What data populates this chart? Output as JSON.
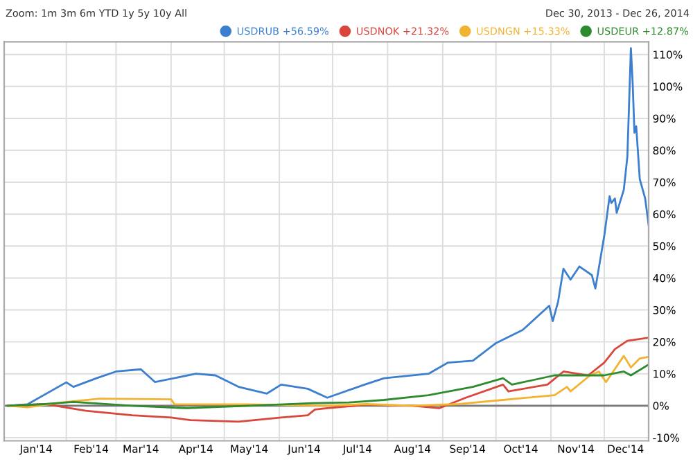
{
  "chart_data": {
    "type": "line",
    "annotations": [
      "Zoom: 1m 3m 6m YTD 1y 5y 10y All",
      "Dec 30, 2013 - Dec 26, 2014"
    ],
    "series": [
      {
        "name": "USDRUB +56.59%",
        "color": "#3d7fcf",
        "x": [
          "2013-12-30",
          "2014-01-10",
          "2014-02-01",
          "2014-02-05",
          "2014-02-18",
          "2014-03-01",
          "2014-03-15",
          "2014-03-23",
          "2014-04-15",
          "2014-04-26",
          "2014-05-09",
          "2014-05-25",
          "2014-06-02",
          "2014-06-17",
          "2014-06-28",
          "2014-07-19",
          "2014-07-30",
          "2014-08-24",
          "2014-09-04",
          "2014-09-18",
          "2014-10-01",
          "2014-10-16",
          "2014-10-31",
          "2014-11-02",
          "2014-11-05",
          "2014-11-08",
          "2014-11-12",
          "2014-11-17",
          "2014-11-24",
          "2014-11-26",
          "2014-12-01",
          "2014-12-04",
          "2014-12-05",
          "2014-12-07",
          "2014-12-08",
          "2014-12-12",
          "2014-12-14",
          "2014-12-16",
          "2014-12-17",
          "2014-12-18",
          "2014-12-19",
          "2014-12-21",
          "2014-12-24",
          "2014-12-26"
        ],
        "values": [
          0,
          0.4,
          7.3,
          5.9,
          8.6,
          10.7,
          11.4,
          7.4,
          10,
          9.5,
          5.9,
          3.8,
          6.6,
          5.3,
          2.5,
          6.6,
          8.6,
          10,
          13.5,
          14.1,
          19.6,
          23.7,
          31.3,
          26.5,
          32.6,
          42.9,
          39.5,
          43.6,
          40.9,
          36.7,
          53.2,
          65.6,
          63.5,
          64.9,
          60.4,
          67.6,
          77.9,
          112,
          101,
          85.5,
          87.5,
          71,
          65,
          56.6
        ]
      },
      {
        "name": "USDNOK +21.32%",
        "color": "#d9463a",
        "x": [
          "2013-12-30",
          "2014-01-20",
          "2014-02-12",
          "2014-03-10",
          "2014-04-01",
          "2014-04-12",
          "2014-05-09",
          "2014-06-02",
          "2014-06-17",
          "2014-06-21",
          "2014-06-28",
          "2014-07-20",
          "2014-08-15",
          "2014-08-30",
          "2014-09-14",
          "2014-10-05",
          "2014-10-08",
          "2014-10-30",
          "2014-11-08",
          "2014-11-22",
          "2014-12-01",
          "2014-12-07",
          "2014-12-14",
          "2014-12-26"
        ],
        "values": [
          0,
          0.5,
          -1.6,
          -3,
          -3.7,
          -4.5,
          -5,
          -3.7,
          -3,
          -1.2,
          -0.8,
          0.3,
          0,
          -0.8,
          2.5,
          6.6,
          4.5,
          6.6,
          10.7,
          9.5,
          13.5,
          17.7,
          20.3,
          21.3
        ]
      },
      {
        "name": "USDNGN +15.33%",
        "color": "#f2b330",
        "x": [
          "2013-12-30",
          "2014-01-10",
          "2014-02-01",
          "2014-02-20",
          "2014-04-01",
          "2014-04-03",
          "2014-05-13",
          "2014-06-28",
          "2014-07-20",
          "2014-08-15",
          "2014-09-10",
          "2014-10-05",
          "2014-11-03",
          "2014-11-10",
          "2014-11-12",
          "2014-11-23",
          "2014-11-28",
          "2014-12-02",
          "2014-12-12",
          "2014-12-16",
          "2014-12-21",
          "2014-12-26"
        ],
        "values": [
          0,
          -0.5,
          1.2,
          2.2,
          2,
          0.4,
          0.4,
          0,
          0.5,
          0,
          0.5,
          1.8,
          3.3,
          5.9,
          4.5,
          9.5,
          10.7,
          7.4,
          15.6,
          12,
          14.8,
          15.3
        ]
      },
      {
        "name": "USDEUR +12.87%",
        "color": "#2e8b2e",
        "x": [
          "2013-12-30",
          "2014-01-20",
          "2014-02-05",
          "2014-03-10",
          "2014-04-10",
          "2014-05-15",
          "2014-06-20",
          "2014-07-10",
          "2014-07-30",
          "2014-08-24",
          "2014-09-18",
          "2014-10-05",
          "2014-10-10",
          "2014-11-03",
          "2014-11-23",
          "2014-12-01",
          "2014-12-12",
          "2014-12-16",
          "2014-12-26"
        ],
        "values": [
          0,
          0.5,
          1.2,
          0,
          -0.8,
          0,
          0.8,
          1,
          1.8,
          3.3,
          5.9,
          8.6,
          6.6,
          9.5,
          9.5,
          9.5,
          10.7,
          9.5,
          12.9
        ]
      }
    ],
    "xlim": [
      "2013-12-28",
      "2014-12-26"
    ],
    "xticks": [
      {
        "value": "2014-02-01",
        "label": null
      },
      {
        "value": "2014-03-01",
        "label": null
      },
      {
        "value": "2014-04-01",
        "label": null
      },
      {
        "value": "2014-05-01",
        "label": null
      },
      {
        "value": "2014-06-01",
        "label": null
      },
      {
        "value": "2014-07-01",
        "label": null
      },
      {
        "value": "2014-08-01",
        "label": null
      },
      {
        "value": "2014-09-01",
        "label": null
      },
      {
        "value": "2014-10-01",
        "label": null
      },
      {
        "value": "2014-11-01",
        "label": null
      },
      {
        "value": "2014-12-01",
        "label": null
      },
      {
        "value": "2014-01-15",
        "label": "Jan'14"
      },
      {
        "value": "2014-02-15",
        "label": "Feb'14"
      },
      {
        "value": "2014-03-15",
        "label": "Mar'14"
      },
      {
        "value": "2014-04-15",
        "label": "Apr'14"
      },
      {
        "value": "2014-05-15",
        "label": "May'14"
      },
      {
        "value": "2014-06-15",
        "label": "Jun'14"
      },
      {
        "value": "2014-07-15",
        "label": "Jul'14"
      },
      {
        "value": "2014-08-15",
        "label": "Aug'14"
      },
      {
        "value": "2014-09-15",
        "label": "Sep'14"
      },
      {
        "value": "2014-10-15",
        "label": "Oct'14"
      },
      {
        "value": "2014-11-15",
        "label": "Nov'14"
      },
      {
        "value": "2014-12-13",
        "label": "Dec'14"
      }
    ],
    "ylim": [
      -11,
      114
    ],
    "yticks": [
      {
        "value": -10,
        "label": "-10%"
      },
      {
        "value": 0,
        "label": "0%"
      },
      {
        "value": 10,
        "label": "10%"
      },
      {
        "value": 20,
        "label": "20%"
      },
      {
        "value": 30,
        "label": "30%"
      },
      {
        "value": 40,
        "label": "40%"
      },
      {
        "value": 50,
        "label": "50%"
      },
      {
        "value": 60,
        "label": "60%"
      },
      {
        "value": 70,
        "label": "70%"
      },
      {
        "value": 80,
        "label": "80%"
      },
      {
        "value": 90,
        "label": "90%"
      },
      {
        "value": 100,
        "label": "100%"
      },
      {
        "value": 110,
        "label": "110%"
      }
    ],
    "ref_lines": [
      {
        "axis": "y",
        "value": 0,
        "label": null,
        "color": "#777777"
      }
    ],
    "grid": true,
    "legend": "top right",
    "marker": "none",
    "line_style": "solid"
  }
}
